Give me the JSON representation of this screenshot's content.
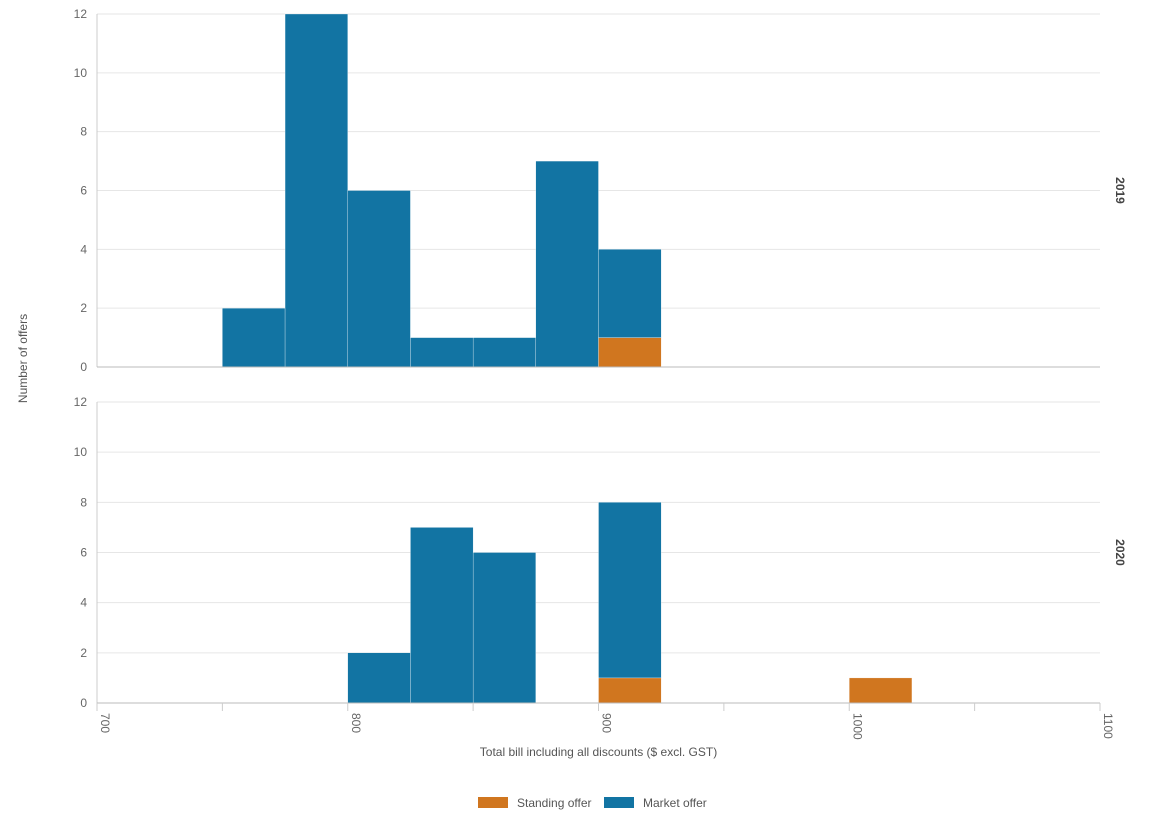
{
  "chart_data": {
    "type": "bar",
    "subtype": "stacked-histogram-facets",
    "xlabel": "Total bill including all discounts ($ excl. GST)",
    "ylabel": "Number of offers",
    "xlim": [
      700,
      1100
    ],
    "ylim": [
      0,
      12
    ],
    "x_ticks": [
      700,
      800,
      900,
      1000,
      1100
    ],
    "y_ticks": [
      0,
      2,
      4,
      6,
      8,
      10,
      12
    ],
    "bin_width": 25,
    "grid": true,
    "legend_position": "bottom",
    "series": [
      {
        "name": "Standing offer",
        "color": "#d0761f"
      },
      {
        "name": "Market offer",
        "color": "#1274a3"
      }
    ],
    "panels": [
      {
        "label": "2019",
        "bins": [
          {
            "x0": 750,
            "x1": 775,
            "standing": 0,
            "market": 2
          },
          {
            "x0": 775,
            "x1": 800,
            "standing": 0,
            "market": 12
          },
          {
            "x0": 800,
            "x1": 825,
            "standing": 0,
            "market": 6
          },
          {
            "x0": 825,
            "x1": 850,
            "standing": 0,
            "market": 1
          },
          {
            "x0": 850,
            "x1": 875,
            "standing": 0,
            "market": 1
          },
          {
            "x0": 875,
            "x1": 900,
            "standing": 0,
            "market": 7
          },
          {
            "x0": 900,
            "x1": 925,
            "standing": 1,
            "market": 3
          }
        ]
      },
      {
        "label": "2020",
        "bins": [
          {
            "x0": 800,
            "x1": 825,
            "standing": 0,
            "market": 2
          },
          {
            "x0": 825,
            "x1": 850,
            "standing": 0,
            "market": 7
          },
          {
            "x0": 850,
            "x1": 875,
            "standing": 0,
            "market": 6
          },
          {
            "x0": 900,
            "x1": 925,
            "standing": 1,
            "market": 7
          },
          {
            "x0": 1000,
            "x1": 1025,
            "standing": 1,
            "market": 0
          }
        ]
      }
    ]
  }
}
